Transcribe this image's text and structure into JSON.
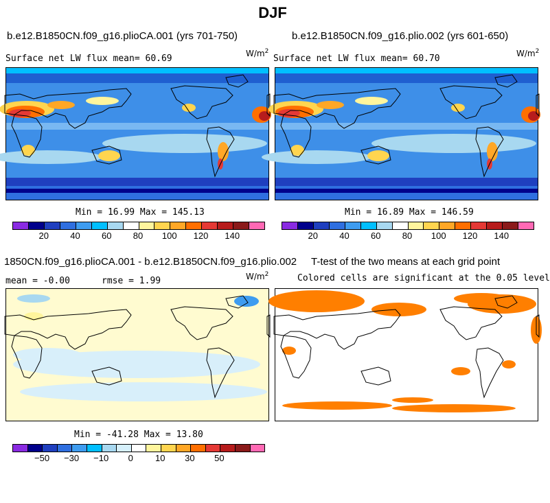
{
  "title": "DJF",
  "panels": [
    {
      "id": "p1",
      "title": "b.e12.B1850CN.f09_g16.plioCA.001 (yrs 701-750)",
      "subtitle": "Surface net LW flux mean=  60.69",
      "units": "W/m",
      "units_sup": "2",
      "minmax": "Min =  16.99 Max = 145.13"
    },
    {
      "id": "p2",
      "title": "b.e12.B1850CN.f09_g16.plio.002 (yrs 601-650)",
      "subtitle": "Surface net LW flux mean=  60.70",
      "units": "W/m",
      "units_sup": "2",
      "minmax": "Min =  16.89 Max = 146.59"
    },
    {
      "id": "p3",
      "title": "1850CN.f09_g16.plioCA.001 - b.e12.B1850CN.f09_g16.plio.002",
      "subtitle_left": "mean =  -0.00",
      "subtitle_right": "rmse =   1.99",
      "units": "W/m",
      "units_sup": "2",
      "minmax": "Min = -41.28 Max =  13.80"
    },
    {
      "id": "p4",
      "title": "T-test of the two means at each grid point",
      "subtitle": "Colored cells are significant at the 0.05 level"
    }
  ],
  "colorbar_abs": {
    "colors": [
      "#8a2be2",
      "#00008b",
      "#1f3fbf",
      "#2f6fe0",
      "#3e9cf0",
      "#00bfff",
      "#a8d8f0",
      "#ffffff",
      "#fff59d",
      "#ffd54f",
      "#ffa726",
      "#ff6f00",
      "#e53935",
      "#b71c1c",
      "#8b1a1a",
      "#ff69b4"
    ],
    "ticks": [
      "20",
      "40",
      "60",
      "80",
      "100",
      "120",
      "140"
    ]
  },
  "colorbar_diff": {
    "colors": [
      "#8a2be2",
      "#00008b",
      "#1f3fbf",
      "#2f6fe0",
      "#3e9cf0",
      "#00bfff",
      "#a8d8f0",
      "#d6f0fb",
      "#ffffff",
      "#fff59d",
      "#ffd54f",
      "#ffa726",
      "#ff6f00",
      "#e53935",
      "#b71c1c",
      "#8b1a1a",
      "#ff69b4"
    ],
    "ticks": [
      "−50",
      "−30",
      "−10",
      "0",
      "10",
      "30",
      "50"
    ]
  },
  "colors": {
    "ttest": "#ff7f00",
    "diff_bg": "#fffbd0",
    "diff_light": "#d8effa"
  }
}
